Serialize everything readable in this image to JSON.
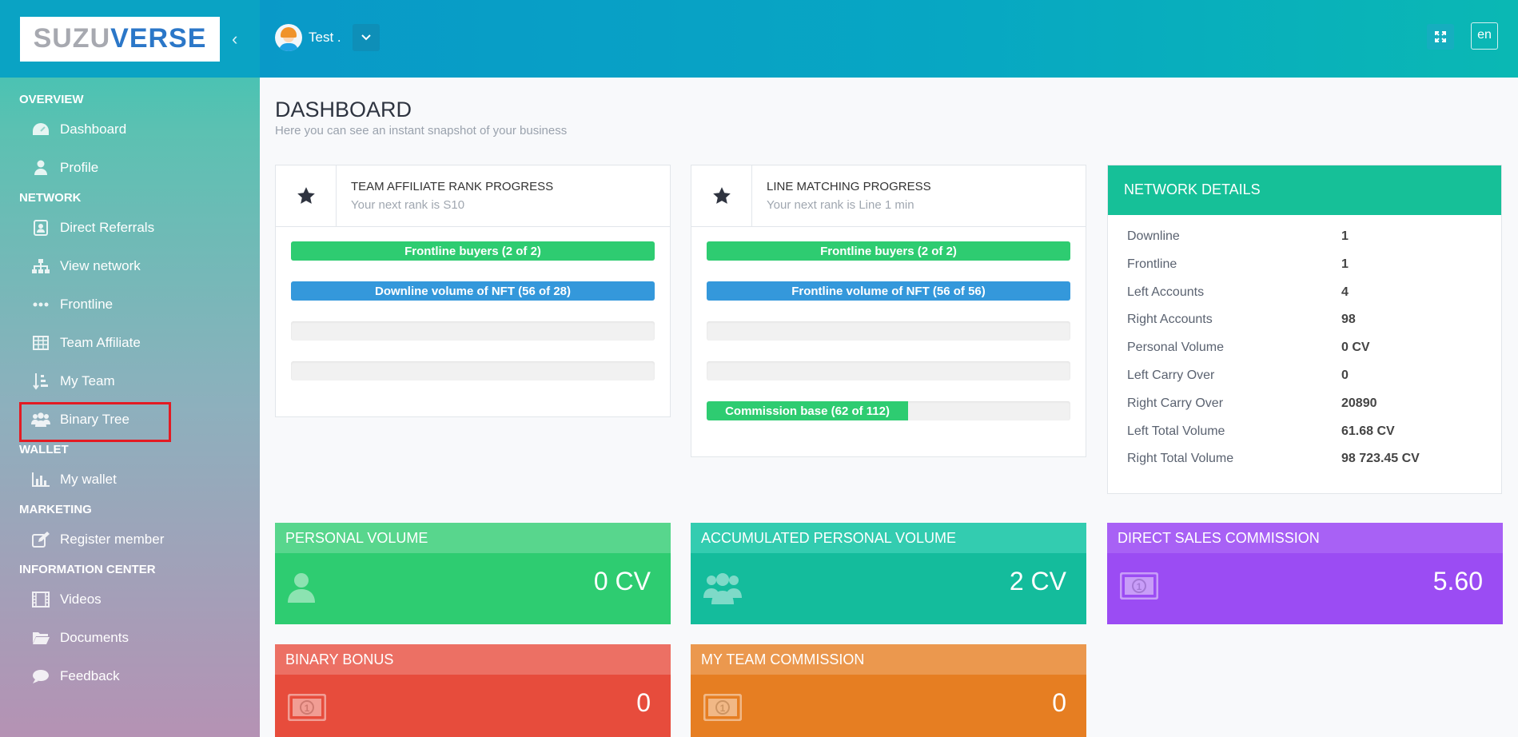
{
  "brand": {
    "logo_part1": "SUZU",
    "logo_part2": "VERSE"
  },
  "header": {
    "user_name": "Test .",
    "lang": "en"
  },
  "sidebar": {
    "sections": [
      {
        "title": "OVERVIEW",
        "items": [
          {
            "label": "Dashboard",
            "icon": "dashboard-icon"
          },
          {
            "label": "Profile",
            "icon": "user-icon"
          }
        ]
      },
      {
        "title": "NETWORK",
        "items": [
          {
            "label": "Direct Referrals",
            "icon": "contact-card-icon"
          },
          {
            "label": "View network",
            "icon": "sitemap-icon"
          },
          {
            "label": "Frontline",
            "icon": "ellipsis-icon"
          },
          {
            "label": "Team Affiliate",
            "icon": "table-icon"
          },
          {
            "label": "My Team",
            "icon": "sort-icon"
          },
          {
            "label": "Binary Tree",
            "icon": "users-icon"
          }
        ]
      },
      {
        "title": "WALLET",
        "items": [
          {
            "label": "My wallet",
            "icon": "bar-chart-icon"
          }
        ]
      },
      {
        "title": "MARKETING",
        "items": [
          {
            "label": "Register member",
            "icon": "edit-icon"
          }
        ]
      },
      {
        "title": "INFORMATION CENTER",
        "items": [
          {
            "label": "Videos",
            "icon": "film-icon"
          },
          {
            "label": "Documents",
            "icon": "folder-icon"
          },
          {
            "label": "Feedback",
            "icon": "comment-icon"
          }
        ]
      }
    ]
  },
  "page": {
    "title": "DASHBOARD",
    "subtitle": "Here you can see an instant snapshot of your business"
  },
  "team_affiliate": {
    "title": "TEAM AFFILIATE RANK PROGRESS",
    "subtitle": "Your next rank is S10",
    "bars": [
      {
        "label": "Frontline buyers (2 of 2)",
        "progress": 1.0,
        "color": "#2ecc71"
      },
      {
        "label": "Downline volume of NFT (56 of 28)",
        "progress": 1.0,
        "color": "#3498db"
      },
      {
        "label": "",
        "progress": 0
      },
      {
        "label": "",
        "progress": 0
      }
    ]
  },
  "line_matching": {
    "title": "LINE MATCHING PROGRESS",
    "subtitle": "Your next rank is Line 1 min",
    "bars": [
      {
        "label": "Frontline buyers (2 of 2)",
        "progress": 1.0,
        "color": "#2ecc71"
      },
      {
        "label": "Frontline volume of NFT (56 of 56)",
        "progress": 1.0,
        "color": "#3498db"
      },
      {
        "label": "",
        "progress": 0
      },
      {
        "label": "",
        "progress": 0
      },
      {
        "label": "Commission base (62 of 112)",
        "progress": 0.554,
        "color": "#2ecc71"
      }
    ]
  },
  "network": {
    "title": "NETWORK DETAILS",
    "rows": [
      {
        "k": "Downline",
        "v": "1"
      },
      {
        "k": "Frontline",
        "v": "1"
      },
      {
        "k": "Left Accounts",
        "v": "4"
      },
      {
        "k": "Right Accounts",
        "v": "98"
      },
      {
        "k": "Personal Volume",
        "v": "0 CV"
      },
      {
        "k": "Left Carry Over",
        "v": "0"
      },
      {
        "k": "Right Carry Over",
        "v": "20890"
      },
      {
        "k": "Left Total Volume",
        "v": "61.68 CV"
      },
      {
        "k": "Right Total Volume",
        "v": "98 723.45 CV"
      }
    ]
  },
  "stats": {
    "personal_volume": {
      "title": "PERSONAL VOLUME",
      "value": "0 CV",
      "head_color": "#58d68d",
      "body_color": "#2ecc71"
    },
    "accumulated": {
      "title": "ACCUMULATED PERSONAL VOLUME",
      "value": "2 CV",
      "head_color": "#33ccb0",
      "body_color": "#14bc9c"
    },
    "direct_sales": {
      "title": "DIRECT SALES COMMISSION",
      "value": "5.60",
      "head_color": "#a861f5",
      "body_color": "#9b4cf3"
    },
    "binary_bonus": {
      "title": "BINARY BONUS",
      "value": "0",
      "head_color": "#ec7064",
      "body_color": "#e74c3c"
    },
    "team_commission": {
      "title": "MY TEAM COMMISSION",
      "value": "0",
      "head_color": "#eb984e",
      "body_color": "#e67e22"
    }
  }
}
